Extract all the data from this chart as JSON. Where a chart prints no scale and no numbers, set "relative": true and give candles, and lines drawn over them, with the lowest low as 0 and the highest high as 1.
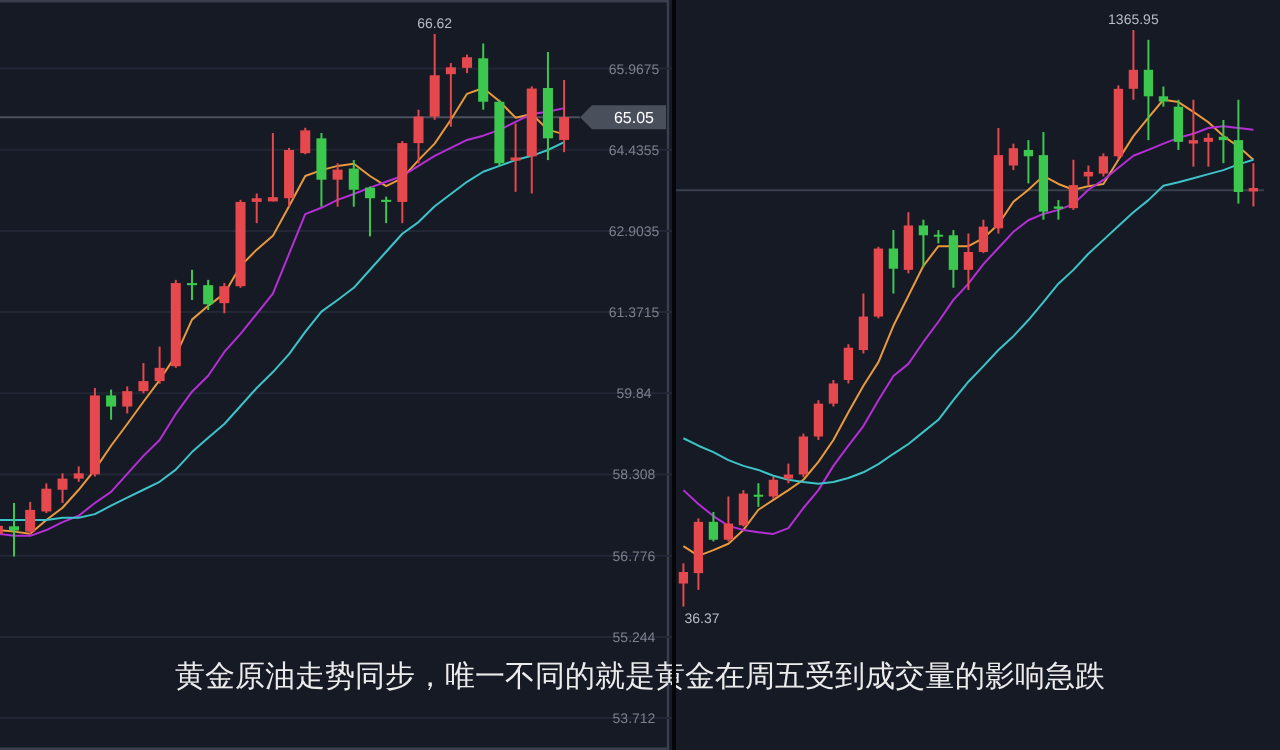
{
  "chart_data": [
    {
      "type": "candlestick",
      "categories": [
        null,
        null,
        null,
        null,
        null,
        null,
        null,
        null,
        null,
        null,
        null,
        null,
        null,
        null,
        null,
        null,
        null,
        null,
        null,
        null,
        null,
        null,
        null,
        null,
        null,
        null,
        null,
        null,
        null,
        null,
        null,
        null,
        null,
        null,
        null,
        null
      ],
      "ohlc": [
        [
          57.19,
          57.38,
          57.15,
          57.34
        ],
        [
          57.33,
          57.77,
          56.76,
          57.25
        ],
        [
          57.23,
          57.79,
          57.18,
          57.64
        ],
        [
          57.61,
          58.14,
          57.58,
          58.04
        ],
        [
          58.02,
          58.33,
          57.77,
          58.23
        ],
        [
          58.23,
          58.46,
          58.17,
          58.33
        ],
        [
          58.31,
          59.94,
          58.27,
          59.8
        ],
        [
          59.8,
          59.91,
          59.34,
          59.59
        ],
        [
          59.59,
          59.97,
          59.46,
          59.88
        ],
        [
          59.88,
          60.41,
          59.84,
          60.07
        ],
        [
          60.07,
          60.72,
          60.02,
          60.32
        ],
        [
          60.35,
          61.98,
          60.32,
          61.92
        ],
        [
          61.92,
          62.17,
          61.6,
          61.88
        ],
        [
          61.88,
          61.98,
          61.41,
          61.52
        ],
        [
          61.54,
          61.92,
          61.35,
          61.86
        ],
        [
          61.86,
          63.49,
          61.83,
          63.45
        ],
        [
          63.45,
          63.61,
          63.05,
          63.52
        ],
        [
          63.46,
          64.75,
          63.46,
          63.54
        ],
        [
          63.52,
          64.47,
          63.36,
          64.43
        ],
        [
          64.37,
          64.85,
          64.35,
          64.8
        ],
        [
          64.65,
          64.75,
          63.36,
          63.87
        ],
        [
          63.87,
          64.18,
          63.36,
          64.06
        ],
        [
          64.08,
          64.24,
          63.36,
          63.68
        ],
        [
          63.72,
          63.74,
          62.8,
          63.52
        ],
        [
          63.49,
          63.55,
          63.05,
          63.45
        ],
        [
          63.45,
          64.6,
          63.05,
          64.56
        ],
        [
          64.56,
          65.19,
          64.18,
          65.06
        ],
        [
          65.06,
          66.62,
          65.0,
          65.84
        ],
        [
          65.86,
          66.07,
          64.87,
          65.99
        ],
        [
          65.98,
          66.23,
          65.88,
          66.18
        ],
        [
          66.16,
          66.44,
          65.19,
          65.34
        ],
        [
          65.34,
          65.38,
          64.12,
          64.18
        ],
        [
          64.23,
          64.93,
          63.64,
          64.29
        ],
        [
          64.31,
          65.63,
          63.61,
          65.59
        ],
        [
          65.6,
          66.28,
          64.24,
          64.65
        ],
        [
          64.62,
          65.75,
          64.39,
          65.05
        ]
      ],
      "series": [
        {
          "type": "line",
          "color": "#e89a3c",
          "values": [
            57.26,
            57.23,
            57.19,
            57.45,
            57.68,
            58.02,
            58.4,
            58.85,
            59.26,
            59.68,
            60.09,
            60.55,
            61.23,
            61.49,
            61.72,
            62.24,
            62.55,
            62.81,
            63.37,
            63.94,
            64.05,
            64.13,
            64.17,
            63.94,
            63.75,
            63.9,
            64.24,
            64.55,
            65.0,
            65.49,
            65.6,
            65.35,
            65.04,
            65.11,
            64.81,
            64.73
          ]
        },
        {
          "type": "line",
          "color": "#b52ed6",
          "values": [
            57.19,
            57.15,
            57.15,
            57.26,
            57.41,
            57.53,
            57.77,
            57.98,
            58.32,
            58.66,
            58.96,
            59.45,
            59.87,
            60.17,
            60.62,
            60.96,
            61.34,
            61.72,
            62.47,
            63.22,
            63.34,
            63.49,
            63.6,
            63.72,
            63.83,
            63.94,
            64.13,
            64.32,
            64.47,
            64.62,
            64.7,
            64.81,
            64.96,
            65.11,
            65.15,
            65.22
          ]
        },
        {
          "type": "line",
          "color": "#3cc4c8",
          "values": [
            57.45,
            57.45,
            57.45,
            57.45,
            57.49,
            57.49,
            57.56,
            57.72,
            57.87,
            58.02,
            58.17,
            58.4,
            58.73,
            59.0,
            59.26,
            59.6,
            59.94,
            60.24,
            60.58,
            61.0,
            61.38,
            61.6,
            61.83,
            62.17,
            62.51,
            62.85,
            63.07,
            63.37,
            63.6,
            63.83,
            64.02,
            64.13,
            64.24,
            64.32,
            64.43,
            64.58
          ]
        }
      ],
      "ylim": [
        53.11,
        67.26
      ],
      "yticks": [
        53.712,
        55.244,
        56.776,
        58.308,
        59.84,
        61.3715,
        62.9035,
        64.4355,
        65.9675
      ],
      "grid": "y",
      "tick_labels": "y",
      "ref_lines": [
        {
          "axis": "y",
          "value": 65.05,
          "label": "65.05",
          "color": "#4a4f5c"
        }
      ],
      "annotations": [
        {
          "text": "66.62",
          "y": 66.62
        },
        "黄金原油走势同步，唯一不同的就是黄金在周五受到成交量的影响急跌"
      ]
    },
    {
      "type": "candlestick",
      "relative": true,
      "categories": [
        null,
        null,
        null,
        null,
        null,
        null,
        null,
        null,
        null,
        null,
        null,
        null,
        null,
        null,
        null,
        null,
        null,
        null,
        null,
        null,
        null,
        null,
        null,
        null,
        null,
        null,
        null,
        null,
        null,
        null,
        null,
        null,
        null,
        null,
        null,
        null,
        null,
        null,
        null
      ],
      "ohlc": [
        [
          0.04,
          0.075,
          0,
          0.06
        ],
        [
          0.058,
          0.153,
          0.029,
          0.147
        ],
        [
          0.147,
          0.164,
          0.113,
          0.116
        ],
        [
          0.116,
          0.191,
          0.113,
          0.144
        ],
        [
          0.141,
          0.202,
          0.139,
          0.196
        ],
        [
          0.194,
          0.214,
          0.173,
          0.191
        ],
        [
          0.191,
          0.225,
          0.187,
          0.22
        ],
        [
          0.222,
          0.248,
          0.214,
          0.229
        ],
        [
          0.229,
          0.3,
          0.225,
          0.295
        ],
        [
          0.295,
          0.358,
          0.289,
          0.352
        ],
        [
          0.352,
          0.393,
          0.347,
          0.387
        ],
        [
          0.393,
          0.455,
          0.387,
          0.449
        ],
        [
          0.445,
          0.543,
          0.439,
          0.503
        ],
        [
          0.503,
          0.624,
          0.5,
          0.621
        ],
        [
          0.621,
          0.653,
          0.543,
          0.586
        ],
        [
          0.584,
          0.684,
          0.578,
          0.661
        ],
        [
          0.661,
          0.671,
          0.59,
          0.644
        ],
        [
          0.645,
          0.653,
          0.63,
          0.643
        ],
        [
          0.644,
          0.653,
          0.553,
          0.584
        ],
        [
          0.584,
          0.647,
          0.549,
          0.615
        ],
        [
          0.615,
          0.671,
          0.613,
          0.659
        ],
        [
          0.656,
          0.83,
          0.647,
          0.783
        ],
        [
          0.765,
          0.803,
          0.757,
          0.795
        ],
        [
          0.792,
          0.809,
          0.734,
          0.781
        ],
        [
          0.783,
          0.823,
          0.671,
          0.685
        ],
        [
          0.694,
          0.705,
          0.671,
          0.69
        ],
        [
          0.691,
          0.775,
          0.688,
          0.731
        ],
        [
          0.746,
          0.765,
          0.731,
          0.754
        ],
        [
          0.751,
          0.786,
          0.746,
          0.781
        ],
        [
          0.781,
          0.904,
          0.775,
          0.898
        ],
        [
          0.898,
          1,
          0.879,
          0.931
        ],
        [
          0.931,
          0.983,
          0.809,
          0.885
        ],
        [
          0.885,
          0.902,
          0.867,
          0.876
        ],
        [
          0.867,
          0.879,
          0.792,
          0.806
        ],
        [
          0.803,
          0.879,
          0.763,
          0.809
        ],
        [
          0.806,
          0.821,
          0.763,
          0.813
        ],
        [
          0.815,
          0.844,
          0.769,
          0.809
        ],
        [
          0.809,
          0.879,
          0.699,
          0.719
        ],
        [
          0.72,
          0.769,
          0.694,
          0.726
        ]
      ],
      "series": [
        {
          "type": "line",
          "color": "#e89a3c",
          "values": [
            0.105,
            0.088,
            0.098,
            0.109,
            0.133,
            0.168,
            0.185,
            0.202,
            0.22,
            0.251,
            0.289,
            0.337,
            0.383,
            0.424,
            0.487,
            0.539,
            0.591,
            0.625,
            0.625,
            0.625,
            0.639,
            0.663,
            0.702,
            0.723,
            0.747,
            0.733,
            0.723,
            0.729,
            0.733,
            0.775,
            0.816,
            0.848,
            0.879,
            0.875,
            0.858,
            0.84,
            0.816,
            0.798,
            0.775
          ]
        },
        {
          "type": "line",
          "color": "#b52ed6",
          "values": [
            0.202,
            0.178,
            0.157,
            0.14,
            0.133,
            0.129,
            0.126,
            0.136,
            0.171,
            0.202,
            0.244,
            0.279,
            0.313,
            0.358,
            0.4,
            0.421,
            0.459,
            0.494,
            0.532,
            0.56,
            0.594,
            0.622,
            0.65,
            0.67,
            0.681,
            0.688,
            0.698,
            0.723,
            0.74,
            0.761,
            0.782,
            0.792,
            0.803,
            0.813,
            0.82,
            0.83,
            0.833,
            0.83,
            0.827
          ]
        },
        {
          "type": "line",
          "color": "#3cc4c8",
          "values": [
            0.292,
            0.279,
            0.268,
            0.254,
            0.244,
            0.237,
            0.227,
            0.22,
            0.216,
            0.213,
            0.216,
            0.223,
            0.233,
            0.247,
            0.265,
            0.282,
            0.303,
            0.324,
            0.358,
            0.39,
            0.417,
            0.445,
            0.469,
            0.497,
            0.528,
            0.56,
            0.584,
            0.612,
            0.636,
            0.66,
            0.684,
            0.705,
            0.73,
            0.736,
            0.743,
            0.75,
            0.757,
            0.767,
            0.775
          ]
        }
      ],
      "tick_labels": false,
      "ref_lines": [
        {
          "axis": "y",
          "value": 0.722,
          "color": "#3a3f4c"
        }
      ],
      "annotations": [
        {
          "text": "1365.95",
          "y": 1
        },
        "36.37"
      ]
    }
  ]
}
